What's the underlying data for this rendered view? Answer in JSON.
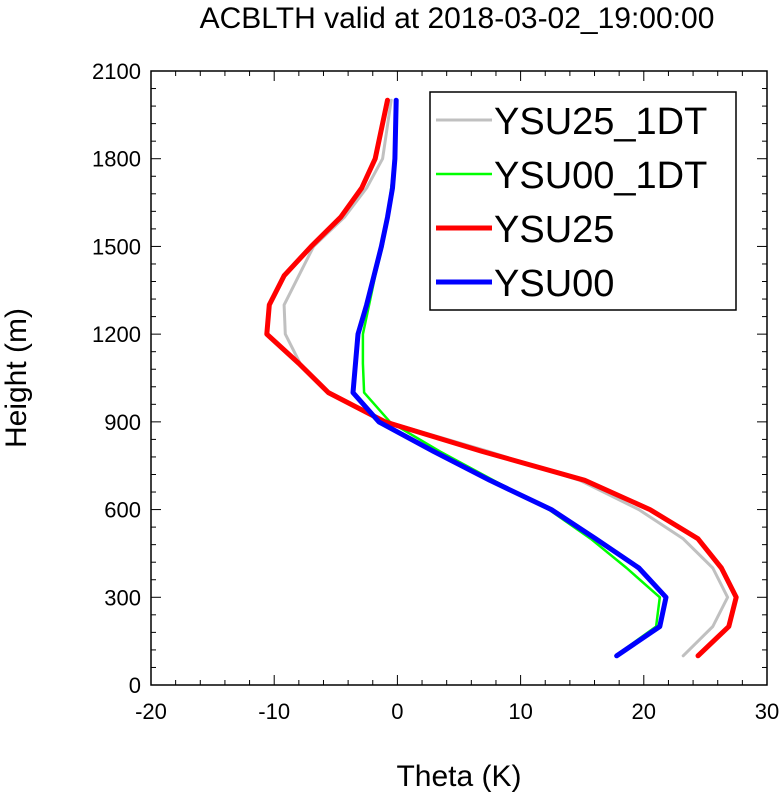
{
  "chart_data": {
    "type": "line",
    "title": "ACBLTH valid at 2018-03-02_19:00:00",
    "xlabel": "Theta (K)",
    "ylabel": "Height (m)",
    "xlim": [
      -20,
      30
    ],
    "ylim": [
      0,
      2100
    ],
    "xticks": [
      -20,
      -10,
      0,
      10,
      20,
      30
    ],
    "yticks": [
      0,
      300,
      600,
      900,
      1200,
      1500,
      1800,
      2100
    ],
    "legend_position": "top-right",
    "series": [
      {
        "name": "YSU25_1DT",
        "color": "#c0c0c0",
        "line_width": 3,
        "x": [
          23.2,
          25.6,
          26.8,
          25.6,
          23.2,
          19.6,
          14.8,
          7.3,
          -0.8,
          -5.6,
          -7.9,
          -9.1,
          -9.2,
          -8.0,
          -6.8,
          -4.3,
          -2.5,
          -1.2,
          -0.5
        ],
        "y": [
          100,
          200,
          300,
          400,
          500,
          600,
          700,
          800,
          900,
          1000,
          1100,
          1200,
          1300,
          1400,
          1500,
          1600,
          1700,
          1800,
          2000
        ]
      },
      {
        "name": "YSU00_1DT",
        "color": "#00ff00",
        "line_width": 2.5,
        "x": [
          17.7,
          21.0,
          21.3,
          18.6,
          15.7,
          12.3,
          7.8,
          3.4,
          -0.6,
          -2.7,
          -2.8,
          -2.8,
          -2.3,
          -1.8,
          -1.2,
          -0.8,
          -0.5,
          -0.2,
          -0.1
        ],
        "y": [
          100,
          200,
          300,
          400,
          500,
          600,
          700,
          800,
          900,
          1000,
          1100,
          1200,
          1300,
          1400,
          1500,
          1600,
          1700,
          1800,
          2000
        ]
      },
      {
        "name": "YSU25",
        "color": "#ff0000",
        "line_width": 5,
        "x": [
          24.4,
          26.9,
          27.5,
          26.3,
          24.4,
          20.5,
          15.2,
          6.8,
          -1.0,
          -5.6,
          -8.0,
          -10.6,
          -10.4,
          -9.2,
          -7.0,
          -4.6,
          -2.9,
          -1.8,
          -0.8
        ],
        "y": [
          100,
          200,
          300,
          400,
          500,
          600,
          700,
          800,
          900,
          1000,
          1100,
          1200,
          1300,
          1400,
          1500,
          1600,
          1700,
          1800,
          2000
        ]
      },
      {
        "name": "YSU00",
        "color": "#0000ff",
        "line_width": 5,
        "x": [
          17.8,
          21.3,
          21.8,
          19.6,
          16.1,
          12.5,
          7.5,
          2.9,
          -1.5,
          -3.6,
          -3.4,
          -3.2,
          -2.5,
          -1.9,
          -1.3,
          -0.8,
          -0.4,
          -0.2,
          -0.1
        ],
        "y": [
          100,
          200,
          300,
          400,
          500,
          600,
          700,
          800,
          900,
          1000,
          1100,
          1200,
          1300,
          1400,
          1500,
          1600,
          1700,
          1800,
          2000
        ]
      }
    ]
  }
}
